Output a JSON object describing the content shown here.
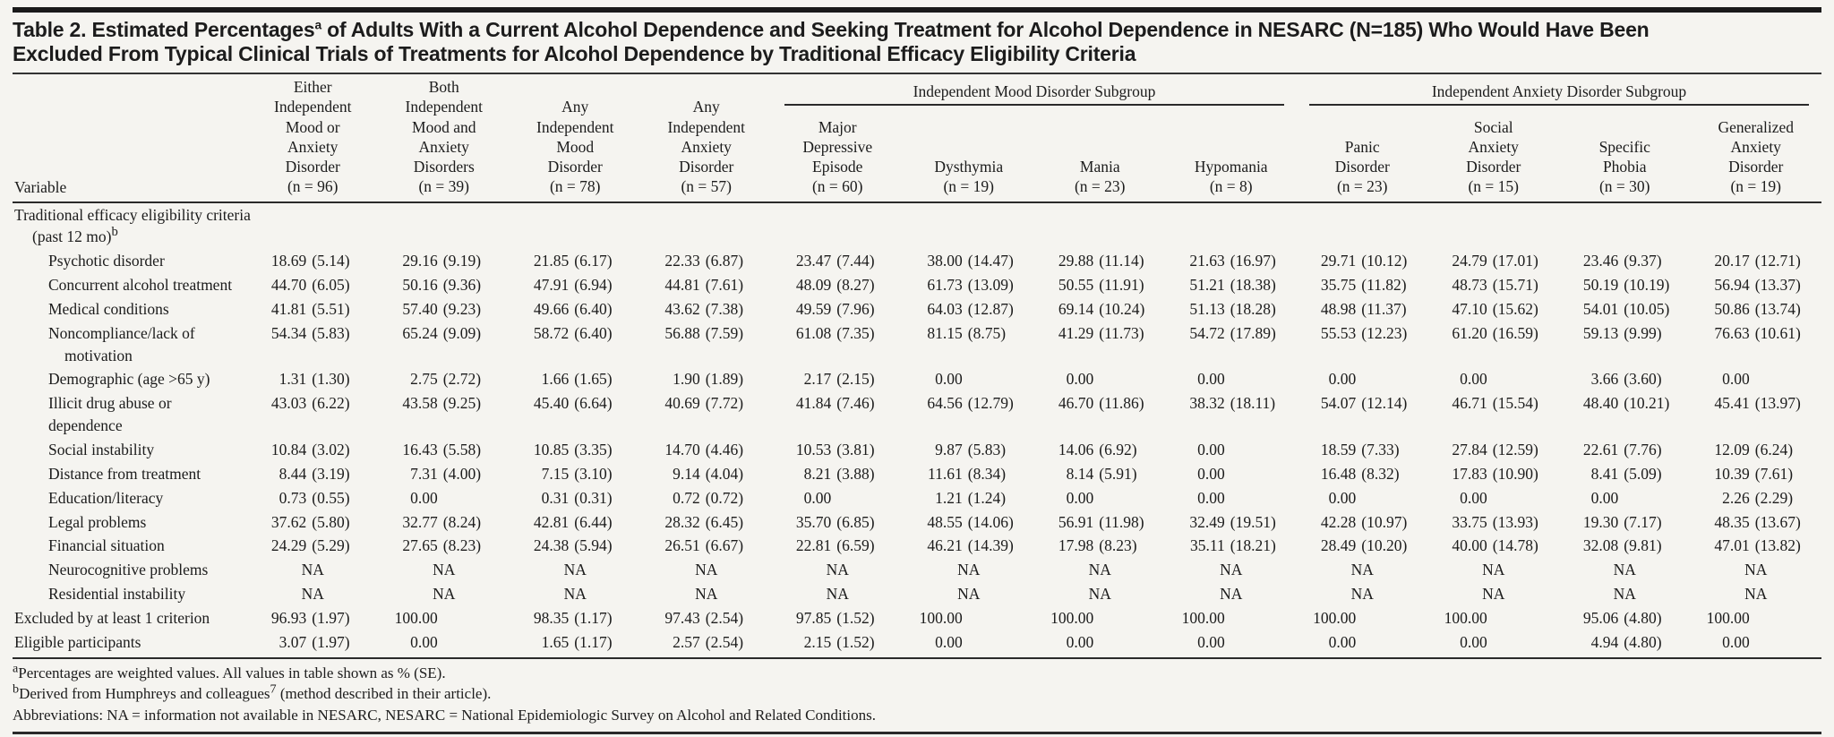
{
  "title": {
    "lead": "Table 2. Estimated Percentages",
    "sup": "a",
    "rest1": " of Adults With a Current Alcohol Dependence and Seeking Treatment for Alcohol Dependence in NESARC (N=185) Who Would Have Been",
    "rest2": "Excluded From Typical Clinical Trials of Treatments for Alcohol Dependence by Traditional Efficacy Eligibility Criteria"
  },
  "table": {
    "variable_header": "Variable",
    "group_headers": [
      {
        "id": "mood",
        "label": "Independent Mood Disorder Subgroup",
        "span": 4
      },
      {
        "id": "anxiety",
        "label": "Independent Anxiety Disorder Subgroup",
        "span": 4
      }
    ],
    "columns": [
      {
        "label": "Either\nIndependent\nMood or\nAnxiety\nDisorder",
        "n": "(n = 96)",
        "group": null
      },
      {
        "label": "Both\nIndependent\nMood and\nAnxiety\nDisorders",
        "n": "(n = 39)",
        "group": null
      },
      {
        "label": "Any\nIndependent\nMood\nDisorder",
        "n": "(n = 78)",
        "group": null
      },
      {
        "label": "Any\nIndependent\nAnxiety\nDisorder",
        "n": "(n = 57)",
        "group": null
      },
      {
        "label": "Major\nDepressive\nEpisode",
        "n": "(n = 60)",
        "group": "mood"
      },
      {
        "label": "Dysthymia",
        "n": "(n = 19)",
        "group": "mood"
      },
      {
        "label": "Mania",
        "n": "(n = 23)",
        "group": "mood"
      },
      {
        "label": "Hypomania",
        "n": "(n = 8)",
        "group": "mood"
      },
      {
        "label": "Panic\nDisorder",
        "n": "(n = 23)",
        "group": "anxiety"
      },
      {
        "label": "Social\nAnxiety\nDisorder",
        "n": "(n = 15)",
        "group": "anxiety"
      },
      {
        "label": "Specific\nPhobia",
        "n": "(n = 30)",
        "group": "anxiety"
      },
      {
        "label": "Generalized\nAnxiety\nDisorder",
        "n": "(n = 19)",
        "group": "anxiety"
      }
    ],
    "section": {
      "line1": "Traditional efficacy eligibility criteria",
      "line2": "(past 12 mo)",
      "sup": "b"
    },
    "rows": [
      {
        "label": "Psychotic disorder",
        "indent": true,
        "cells": [
          "18.69 (5.14)",
          "29.16 (9.19)",
          "21.85 (6.17)",
          "22.33 (6.87)",
          "23.47 (7.44)",
          "38.00 (14.47)",
          "29.88 (11.14)",
          "21.63 (16.97)",
          "29.71 (10.12)",
          "24.79 (17.01)",
          "23.46 (9.37)",
          "20.17 (12.71)"
        ]
      },
      {
        "label": "Concurrent alcohol treatment",
        "indent": true,
        "cells": [
          "44.70 (6.05)",
          "50.16 (9.36)",
          "47.91 (6.94)",
          "44.81 (7.61)",
          "48.09 (8.27)",
          "61.73 (13.09)",
          "50.55 (11.91)",
          "51.21 (18.38)",
          "35.75 (11.82)",
          "48.73 (15.71)",
          "50.19 (10.19)",
          "56.94 (13.37)"
        ]
      },
      {
        "label": "Medical conditions",
        "indent": true,
        "cells": [
          "41.81 (5.51)",
          "57.40 (9.23)",
          "49.66 (6.40)",
          "43.62 (7.38)",
          "49.59 (7.96)",
          "64.03 (12.87)",
          "69.14 (10.24)",
          "51.13 (18.28)",
          "48.98 (11.37)",
          "47.10 (15.62)",
          "54.01 (10.05)",
          "50.86 (13.74)"
        ]
      },
      {
        "label": "Noncompliance/lack of",
        "label2": "motivation",
        "indent": true,
        "cells": [
          "54.34 (5.83)",
          "65.24 (9.09)",
          "58.72 (6.40)",
          "56.88 (7.59)",
          "61.08 (7.35)",
          "81.15 (8.75)",
          "41.29 (11.73)",
          "54.72 (17.89)",
          "55.53 (12.23)",
          "61.20 (16.59)",
          "59.13 (9.99)",
          "76.63 (10.61)"
        ]
      },
      {
        "label": "Demographic (age >65 y)",
        "indent": true,
        "cells": [
          "1.31 (1.30)",
          "2.75 (2.72)",
          "1.66 (1.65)",
          "1.90 (1.89)",
          "2.17 (2.15)",
          "0.00",
          "0.00",
          "0.00",
          "0.00",
          "0.00",
          "3.66 (3.60)",
          "0.00"
        ]
      },
      {
        "label": "Illicit drug abuse or dependence",
        "indent": true,
        "cells": [
          "43.03 (6.22)",
          "43.58 (9.25)",
          "45.40 (6.64)",
          "40.69 (7.72)",
          "41.84 (7.46)",
          "64.56 (12.79)",
          "46.70 (11.86)",
          "38.32 (18.11)",
          "54.07 (12.14)",
          "46.71 (15.54)",
          "48.40 (10.21)",
          "45.41 (13.97)"
        ]
      },
      {
        "label": "Social instability",
        "indent": true,
        "cells": [
          "10.84 (3.02)",
          "16.43 (5.58)",
          "10.85 (3.35)",
          "14.70 (4.46)",
          "10.53 (3.81)",
          "9.87 (5.83)",
          "14.06 (6.92)",
          "0.00",
          "18.59 (7.33)",
          "27.84 (12.59)",
          "22.61 (7.76)",
          "12.09 (6.24)"
        ]
      },
      {
        "label": "Distance from treatment",
        "indent": true,
        "cells": [
          "8.44 (3.19)",
          "7.31 (4.00)",
          "7.15 (3.10)",
          "9.14 (4.04)",
          "8.21 (3.88)",
          "11.61 (8.34)",
          "8.14 (5.91)",
          "0.00",
          "16.48 (8.32)",
          "17.83 (10.90)",
          "8.41 (5.09)",
          "10.39 (7.61)"
        ]
      },
      {
        "label": "Education/literacy",
        "indent": true,
        "cells": [
          "0.73 (0.55)",
          "0.00",
          "0.31 (0.31)",
          "0.72 (0.72)",
          "0.00",
          "1.21 (1.24)",
          "0.00",
          "0.00",
          "0.00",
          "0.00",
          "0.00",
          "2.26 (2.29)"
        ]
      },
      {
        "label": "Legal problems",
        "indent": true,
        "cells": [
          "37.62 (5.80)",
          "32.77 (8.24)",
          "42.81 (6.44)",
          "28.32 (6.45)",
          "35.70 (6.85)",
          "48.55 (14.06)",
          "56.91 (11.98)",
          "32.49 (19.51)",
          "42.28 (10.97)",
          "33.75 (13.93)",
          "19.30 (7.17)",
          "48.35 (13.67)"
        ]
      },
      {
        "label": "Financial situation",
        "indent": true,
        "cells": [
          "24.29 (5.29)",
          "27.65 (8.23)",
          "24.38 (5.94)",
          "26.51 (6.67)",
          "22.81 (6.59)",
          "46.21 (14.39)",
          "17.98 (8.23)",
          "35.11 (18.21)",
          "28.49 (10.20)",
          "40.00 (14.78)",
          "32.08 (9.81)",
          "47.01 (13.82)"
        ]
      },
      {
        "label": "Neurocognitive problems",
        "indent": true,
        "cells": [
          "NA",
          "NA",
          "NA",
          "NA",
          "NA",
          "NA",
          "NA",
          "NA",
          "NA",
          "NA",
          "NA",
          "NA"
        ]
      },
      {
        "label": "Residential instability",
        "indent": true,
        "cells": [
          "NA",
          "NA",
          "NA",
          "NA",
          "NA",
          "NA",
          "NA",
          "NA",
          "NA",
          "NA",
          "NA",
          "NA"
        ]
      },
      {
        "label": "Excluded by at least 1 criterion",
        "indent": false,
        "cells": [
          "96.93 (1.97)",
          "100.00",
          "98.35 (1.17)",
          "97.43 (2.54)",
          "97.85 (1.52)",
          "100.00",
          "100.00",
          "100.00",
          "100.00",
          "100.00",
          "95.06 (4.80)",
          "100.00"
        ]
      },
      {
        "label": "Eligible participants",
        "indent": false,
        "cells": [
          "3.07 (1.97)",
          "0.00",
          "1.65 (1.17)",
          "2.57 (2.54)",
          "2.15 (1.52)",
          "0.00",
          "0.00",
          "0.00",
          "0.00",
          "0.00",
          "4.94 (4.80)",
          "0.00"
        ]
      }
    ]
  },
  "footnotes": {
    "fn_a": {
      "sup": "a",
      "text": "Percentages are weighted values. All values in table shown as % (SE)."
    },
    "fn_b": {
      "sup": "b",
      "text1": "Derived from Humphreys and colleagues",
      "sup2": "7",
      "text2": " (method described in their article)."
    },
    "abbreviations": "Abbreviations: NA = information not available in NESARC, NESARC = National Epidemiologic Survey on Alcohol and Related Conditions."
  }
}
